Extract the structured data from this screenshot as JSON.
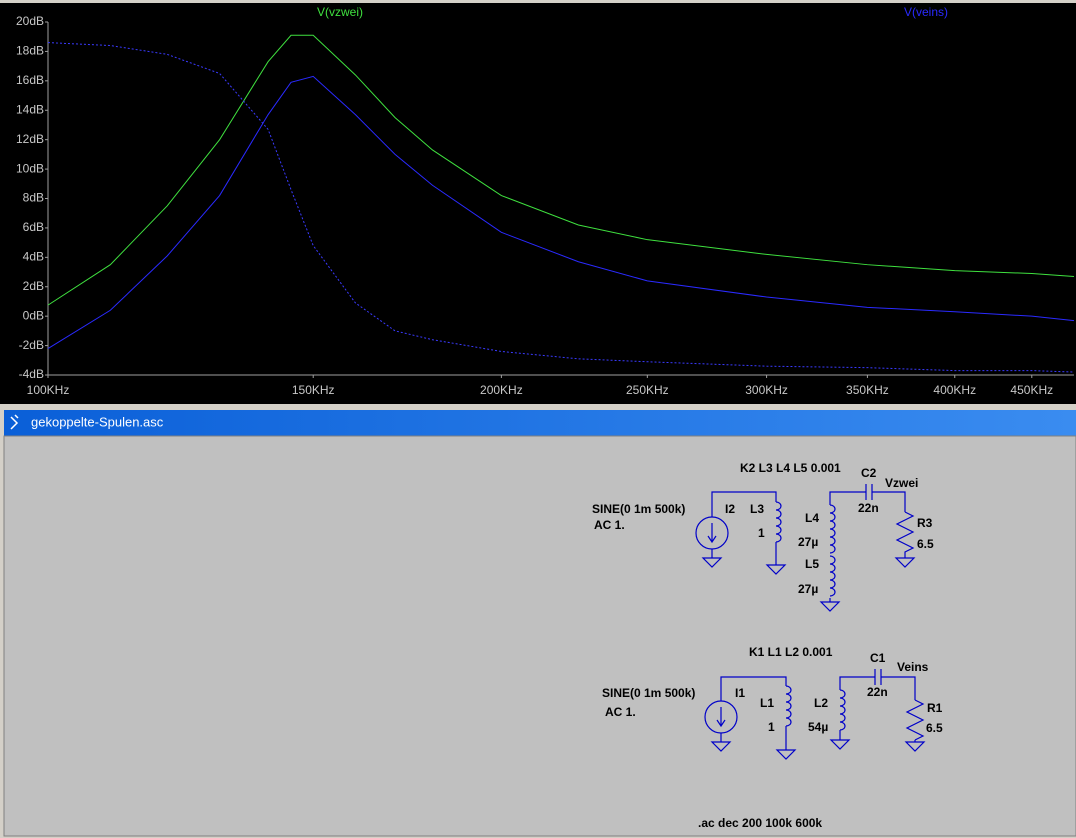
{
  "chart_data": {
    "type": "line",
    "x": [
      100000,
      110000,
      120000,
      130000,
      140000,
      145000,
      150000,
      160000,
      170000,
      180000,
      200000,
      225000,
      250000,
      300000,
      350000,
      400000,
      450000,
      480000
    ],
    "series": [
      {
        "name": "V(vzwei)",
        "color": "#3fe03f",
        "values": [
          0.75,
          3.5,
          7.5,
          12,
          17.3,
          19.1,
          19.1,
          16.4,
          13.5,
          11.3,
          8.2,
          6.2,
          5.2,
          4.2,
          3.5,
          3.1,
          2.9,
          2.7
        ]
      },
      {
        "name": "V(veins)",
        "color": "#2a2aff",
        "values": [
          -2.2,
          0.4,
          4.1,
          8.2,
          13.7,
          15.9,
          16.3,
          13.7,
          11,
          8.9,
          5.7,
          3.7,
          2.4,
          1.3,
          0.6,
          0.3,
          0,
          -0.3
        ]
      },
      {
        "color": "#3a3aff",
        "dashed": true,
        "values": [
          18.6,
          18.4,
          17.8,
          16.5,
          12.7,
          8.6,
          4.8,
          0.9,
          -1.0,
          -1.6,
          -2.4,
          -2.9,
          -3.1,
          -3.4,
          -3.5,
          -3.7,
          -3.7,
          -3.8
        ]
      }
    ],
    "xscale": "log",
    "xlim": [
      100000,
      480000
    ],
    "xticks": [
      {
        "value": 100000,
        "label": "100KHz"
      },
      {
        "value": 150000,
        "label": "150KHz"
      },
      {
        "value": 200000,
        "label": "200KHz"
      },
      {
        "value": 250000,
        "label": "250KHz"
      },
      {
        "value": 300000,
        "label": "300KHz"
      },
      {
        "value": 350000,
        "label": "350KHz"
      },
      {
        "value": 400000,
        "label": "400KHz"
      },
      {
        "value": 450000,
        "label": "450KHz"
      }
    ],
    "ylim": [
      -4,
      20
    ],
    "yticks": [
      {
        "value": 20,
        "label": "20dB"
      },
      {
        "value": 18,
        "label": "18dB"
      },
      {
        "value": 16,
        "label": "16dB"
      },
      {
        "value": 14,
        "label": "14dB"
      },
      {
        "value": 12,
        "label": "12dB"
      },
      {
        "value": 10,
        "label": "10dB"
      },
      {
        "value": 8,
        "label": "8dB"
      },
      {
        "value": 6,
        "label": "6dB"
      },
      {
        "value": 4,
        "label": "4dB"
      },
      {
        "value": 2,
        "label": "2dB"
      },
      {
        "value": 0,
        "label": "0dB"
      },
      {
        "value": -2,
        "label": "-2dB"
      },
      {
        "value": -4,
        "label": "-4dB"
      }
    ]
  },
  "window": {
    "title": "gekoppelte-Spulen.asc"
  },
  "schematic": {
    "texts": [
      "K2 L3 L4 L5 0.001",
      "C2",
      "Vzwei",
      "SINE(0 1m 500k)",
      "AC 1.",
      "I2",
      "L3",
      "1",
      "L4",
      "22n",
      "R3",
      "27µ",
      "6.5",
      "L5",
      "27µ",
      "K1 L1 L2 0.001",
      "C1",
      "Veins",
      "SINE(0 1m 500k)",
      "AC 1.",
      "I1",
      "L1",
      "L2",
      "22n",
      "R1",
      "54µ",
      "1",
      "6.5",
      ".ac dec 200 100k 600k"
    ]
  }
}
